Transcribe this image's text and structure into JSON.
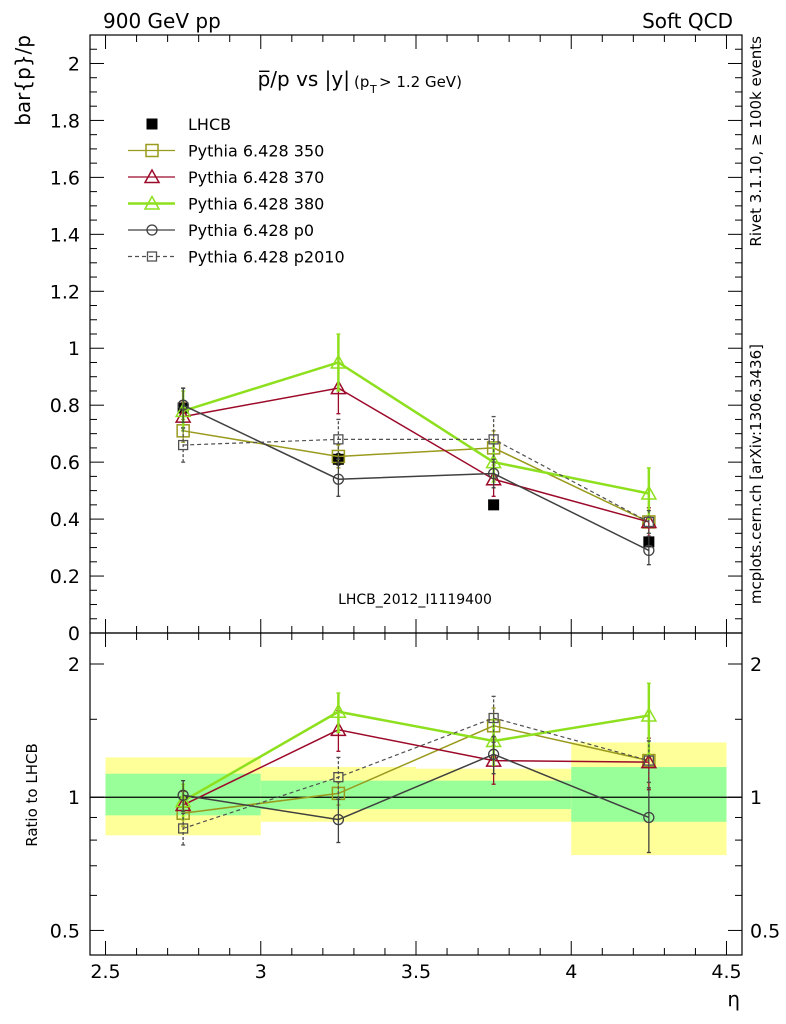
{
  "header": {
    "left": "900 GeV pp",
    "right": "Soft QCD"
  },
  "side_labels": {
    "rivet": "Rivet 3.1.10, ≥ 100k events",
    "mcplots": "mcplots.cern.ch [arXiv:1306.3436]"
  },
  "watermark": "LHCB_2012_I1119400",
  "main_title": {
    "main": "p̅/p vs |y|",
    "cut_open": "(p",
    "cut_sub": "T",
    "cut_close": " > 1.2 GeV)"
  },
  "colors": {
    "lhcb": "#000000",
    "p350": "#9a9a1e",
    "p370": "#9c0a2a",
    "p380": "#8ee01e",
    "p0": "#404040",
    "p2010": "#505050",
    "band_yellow": "#ffff99",
    "band_green": "#99ff99"
  },
  "chart_data": [
    {
      "type": "line",
      "ylabel": "bar{p}/p",
      "ylim": [
        0,
        2.1
      ],
      "xlim": [
        2.45,
        4.55
      ],
      "yticks": [
        0,
        0.2,
        0.4,
        0.6,
        0.8,
        1,
        1.2,
        1.4,
        1.6,
        1.8,
        2
      ],
      "ytick_labels": [
        "0",
        "0.2",
        "0.4",
        "0.6",
        "0.8",
        "1",
        "1.2",
        "1.4",
        "1.6",
        "1.8",
        "2"
      ],
      "legend": "top-left",
      "series": [
        {
          "name": "LHCB",
          "key": "lhcb",
          "x": [
            2.75,
            3.25,
            3.75,
            4.25
          ],
          "y": [
            0.79,
            0.61,
            0.45,
            0.32
          ],
          "err": [
            0.07,
            0.02,
            0.01,
            0.01
          ]
        },
        {
          "name": "Pythia 6.428 350",
          "key": "p350",
          "x": [
            2.75,
            3.25,
            3.75,
            4.25
          ],
          "y": [
            0.71,
            0.62,
            0.65,
            0.39
          ],
          "err": [
            0.04,
            0.04,
            0.06,
            0.04
          ]
        },
        {
          "name": "Pythia 6.428 370",
          "key": "p370",
          "x": [
            2.75,
            3.25,
            3.75,
            4.25
          ],
          "y": [
            0.76,
            0.86,
            0.54,
            0.39
          ],
          "err": [
            0.05,
            0.09,
            0.06,
            0.05
          ]
        },
        {
          "name": "Pythia 6.428 380",
          "key": "p380",
          "x": [
            2.75,
            3.25,
            3.75,
            4.25
          ],
          "y": [
            0.78,
            0.95,
            0.6,
            0.49
          ],
          "err": [
            0.07,
            0.1,
            0.07,
            0.09
          ]
        },
        {
          "name": "Pythia 6.428 p0",
          "key": "p0",
          "x": [
            2.75,
            3.25,
            3.75,
            4.25
          ],
          "y": [
            0.8,
            0.54,
            0.56,
            0.29
          ],
          "err": [
            0.06,
            0.06,
            0.05,
            0.05
          ]
        },
        {
          "name": "Pythia 6.428 p2010",
          "key": "p2010",
          "x": [
            2.75,
            3.25,
            3.75,
            4.25
          ],
          "y": [
            0.66,
            0.68,
            0.68,
            0.39
          ],
          "err": [
            0.06,
            0.07,
            0.08,
            0.04
          ]
        }
      ]
    },
    {
      "type": "line",
      "ylabel": "Ratio to LHCB",
      "xlabel": "η",
      "yscale": "log",
      "ylim": [
        0.44,
        2.35
      ],
      "xlim": [
        2.45,
        4.55
      ],
      "xticks": [
        2.5,
        3,
        3.5,
        4,
        4.5
      ],
      "xtick_labels": [
        "2.5",
        "3",
        "3.5",
        "4",
        "4.5"
      ],
      "yticks": [
        0.5,
        1,
        2
      ],
      "ytick_labels": [
        "0.5",
        "1",
        "2"
      ],
      "bands": [
        {
          "x0": 2.5,
          "x1": 3.0,
          "yellow": [
            0.82,
            1.23
          ],
          "green": [
            0.91,
            1.13
          ]
        },
        {
          "x0": 3.0,
          "x1": 3.5,
          "yellow": [
            0.88,
            1.17
          ],
          "green": [
            0.94,
            1.09
          ]
        },
        {
          "x0": 3.5,
          "x1": 4.0,
          "yellow": [
            0.88,
            1.16
          ],
          "green": [
            0.94,
            1.09
          ]
        },
        {
          "x0": 4.0,
          "x1": 4.5,
          "yellow": [
            0.74,
            1.33
          ],
          "green": [
            0.88,
            1.17
          ]
        }
      ],
      "series": [
        {
          "name": "Pythia 6.428 350",
          "key": "p350",
          "x": [
            2.75,
            3.25,
            3.75,
            4.25
          ],
          "y": [
            0.92,
            1.02,
            1.45,
            1.21
          ],
          "err": [
            0.06,
            0.06,
            0.14,
            0.13
          ]
        },
        {
          "name": "Pythia 6.428 370",
          "key": "p370",
          "x": [
            2.75,
            3.25,
            3.75,
            4.25
          ],
          "y": [
            0.96,
            1.42,
            1.21,
            1.2
          ],
          "err": [
            0.07,
            0.15,
            0.14,
            0.16
          ]
        },
        {
          "name": "Pythia 6.428 380",
          "key": "p380",
          "x": [
            2.75,
            3.25,
            3.75,
            4.25
          ],
          "y": [
            0.98,
            1.56,
            1.34,
            1.53
          ],
          "err": [
            0.09,
            0.16,
            0.16,
            0.28
          ]
        },
        {
          "name": "Pythia 6.428 p0",
          "key": "p0",
          "x": [
            2.75,
            3.25,
            3.75,
            4.25
          ],
          "y": [
            1.01,
            0.89,
            1.25,
            0.9
          ],
          "err": [
            0.08,
            0.1,
            0.12,
            0.15
          ]
        },
        {
          "name": "Pythia 6.428 p2010",
          "key": "p2010",
          "x": [
            2.75,
            3.25,
            3.75,
            4.25
          ],
          "y": [
            0.85,
            1.11,
            1.51,
            1.21
          ],
          "err": [
            0.07,
            0.12,
            0.18,
            0.13
          ]
        }
      ]
    }
  ]
}
